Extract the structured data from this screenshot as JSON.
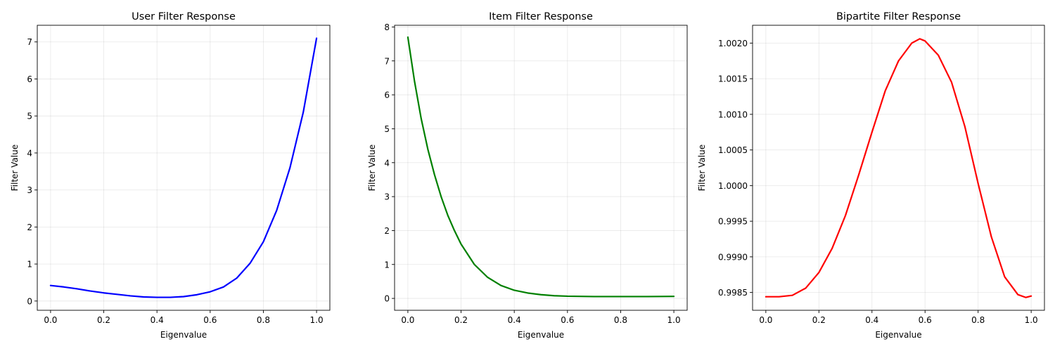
{
  "figure": {
    "background": "#ffffff"
  },
  "chart_data": [
    {
      "type": "line",
      "title": "User Filter Response",
      "xlabel": "Eigenvalue",
      "ylabel": "Filter Value",
      "xlim": [
        -0.05,
        1.05
      ],
      "ylim": [
        -0.25,
        7.45
      ],
      "xticks": [
        0.0,
        0.2,
        0.4,
        0.6,
        0.8,
        1.0
      ],
      "xtick_labels": [
        "0.0",
        "0.2",
        "0.4",
        "0.6",
        "0.8",
        "1.0"
      ],
      "yticks": [
        0,
        1,
        2,
        3,
        4,
        5,
        6,
        7
      ],
      "ytick_labels": [
        "0",
        "1",
        "2",
        "3",
        "4",
        "5",
        "6",
        "7"
      ],
      "grid": true,
      "series": [
        {
          "color": "#0000ff",
          "x": [
            0.0,
            0.05,
            0.1,
            0.15,
            0.2,
            0.25,
            0.3,
            0.35,
            0.4,
            0.45,
            0.5,
            0.55,
            0.6,
            0.65,
            0.7,
            0.75,
            0.8,
            0.85,
            0.9,
            0.95,
            1.0
          ],
          "y": [
            0.42,
            0.38,
            0.33,
            0.27,
            0.22,
            0.18,
            0.14,
            0.11,
            0.1,
            0.1,
            0.12,
            0.17,
            0.25,
            0.38,
            0.62,
            1.02,
            1.6,
            2.45,
            3.6,
            5.1,
            7.1
          ]
        }
      ]
    },
    {
      "type": "line",
      "title": "Item Filter Response",
      "xlabel": "Eigenvalue",
      "ylabel": "Filter Value",
      "xlim": [
        -0.05,
        1.05
      ],
      "ylim": [
        -0.35,
        8.05
      ],
      "xticks": [
        0.0,
        0.2,
        0.4,
        0.6,
        0.8,
        1.0
      ],
      "xtick_labels": [
        "0.0",
        "0.2",
        "0.4",
        "0.6",
        "0.8",
        "1.0"
      ],
      "yticks": [
        0,
        1,
        2,
        3,
        4,
        5,
        6,
        7,
        8
      ],
      "ytick_labels": [
        "0",
        "1",
        "2",
        "3",
        "4",
        "5",
        "6",
        "7",
        "8"
      ],
      "grid": true,
      "series": [
        {
          "color": "#008000",
          "x": [
            0.0,
            0.025,
            0.05,
            0.075,
            0.1,
            0.125,
            0.15,
            0.175,
            0.2,
            0.25,
            0.3,
            0.35,
            0.4,
            0.45,
            0.5,
            0.55,
            0.6,
            0.7,
            0.8,
            0.9,
            1.0
          ],
          "y": [
            7.7,
            6.4,
            5.3,
            4.4,
            3.65,
            3.0,
            2.45,
            2.0,
            1.6,
            1.0,
            0.62,
            0.38,
            0.24,
            0.16,
            0.11,
            0.08,
            0.065,
            0.055,
            0.055,
            0.055,
            0.06
          ]
        }
      ]
    },
    {
      "type": "line",
      "title": "Bipartite Filter Response",
      "xlabel": "Eigenvalue",
      "ylabel": "Filter Value",
      "xlim": [
        -0.05,
        1.05
      ],
      "ylim": [
        0.99825,
        1.00225
      ],
      "xticks": [
        0.0,
        0.2,
        0.4,
        0.6,
        0.8,
        1.0
      ],
      "xtick_labels": [
        "0.0",
        "0.2",
        "0.4",
        "0.6",
        "0.8",
        "1.0"
      ],
      "yticks": [
        0.9985,
        0.999,
        0.9995,
        1.0,
        1.0005,
        1.001,
        1.0015,
        1.002
      ],
      "ytick_labels": [
        "0.9985",
        "0.9990",
        "0.9995",
        "1.0000",
        "1.0005",
        "1.0010",
        "1.0015",
        "1.0020"
      ],
      "grid": true,
      "series": [
        {
          "color": "#ff0000",
          "x": [
            0.0,
            0.05,
            0.1,
            0.15,
            0.2,
            0.25,
            0.3,
            0.35,
            0.4,
            0.45,
            0.5,
            0.55,
            0.58,
            0.6,
            0.65,
            0.7,
            0.75,
            0.8,
            0.85,
            0.9,
            0.95,
            0.98,
            1.0
          ],
          "y": [
            0.99844,
            0.99844,
            0.99846,
            0.99856,
            0.99878,
            0.99912,
            0.99958,
            1.00015,
            1.00075,
            1.00133,
            1.00175,
            1.002,
            1.00206,
            1.00203,
            1.00183,
            1.00145,
            1.00083,
            1.00003,
            0.99928,
            0.99872,
            0.99847,
            0.99843,
            0.99845
          ]
        }
      ]
    }
  ]
}
